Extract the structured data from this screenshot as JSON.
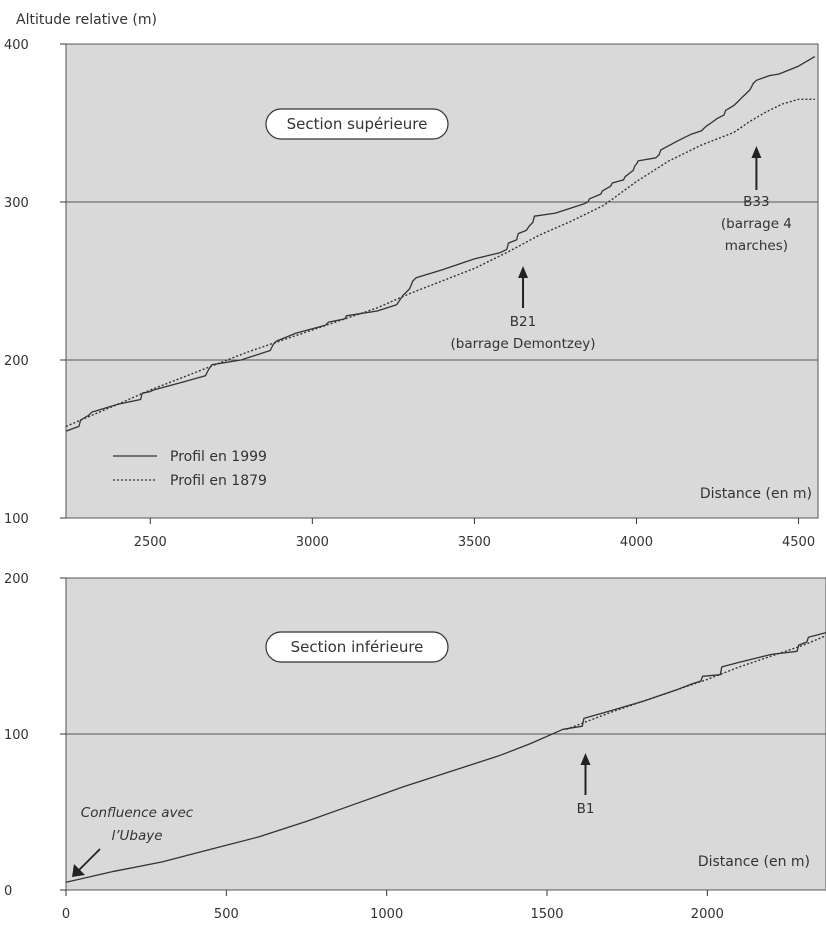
{
  "figure": {
    "y_axis_title": "Altitude relative (m)"
  },
  "chart_data": [
    {
      "type": "line",
      "panel": "top",
      "section_label": "Section supérieure",
      "xlabel": "Distance (en m)",
      "xlim": [
        2240,
        4560
      ],
      "ylim": [
        100,
        400
      ],
      "x_ticks": [
        2500,
        3000,
        3500,
        4000,
        4500
      ],
      "y_ticks": [
        100,
        200,
        300,
        400
      ],
      "gridlines_y": [
        200,
        300
      ],
      "legend": {
        "position": "bottom-left"
      },
      "series": [
        {
          "name": "Profil en 1999",
          "style": "solid",
          "x": [
            2240,
            2280,
            2285,
            2310,
            2320,
            2400,
            2470,
            2475,
            2500,
            2510,
            2600,
            2670,
            2680,
            2690,
            2780,
            2870,
            2880,
            2890,
            2950,
            3040,
            3050,
            3100,
            3105,
            3200,
            3260,
            3280,
            3290,
            3300,
            3310,
            3320,
            3400,
            3500,
            3580,
            3600,
            3605,
            3630,
            3635,
            3660,
            3670,
            3680,
            3685,
            3750,
            3840,
            3850,
            3855,
            3890,
            3895,
            3920,
            3925,
            3960,
            3965,
            3990,
            3995,
            4000,
            4005,
            4060,
            4070,
            4075,
            4130,
            4140,
            4150,
            4170,
            4200,
            4215,
            4230,
            4250,
            4270,
            4275,
            4300,
            4310,
            4320,
            4330,
            4340,
            4350,
            4355,
            4360,
            4370,
            4410,
            4440,
            4500,
            4550
          ],
          "y": [
            155,
            158,
            162,
            165,
            167,
            172,
            175,
            179,
            180,
            181,
            186,
            190,
            194,
            197,
            200,
            206,
            210,
            212,
            217,
            222,
            224,
            226,
            228,
            231,
            235,
            241,
            243,
            245,
            250,
            252,
            257,
            264,
            268,
            270,
            274,
            276,
            280,
            282,
            285,
            287,
            291,
            293,
            299,
            300,
            302,
            305,
            307,
            310,
            312,
            314,
            316,
            320,
            323,
            324,
            326,
            328,
            330,
            333,
            339,
            340,
            341,
            343,
            345,
            348,
            350,
            353,
            355,
            358,
            361,
            363,
            365,
            367,
            369,
            371,
            373,
            375,
            377,
            380,
            381,
            386,
            392
          ]
        },
        {
          "name": "Profil en 1879",
          "style": "dotted",
          "x": [
            2240,
            2400,
            2500,
            2600,
            2700,
            2800,
            2900,
            3000,
            3100,
            3200,
            3300,
            3400,
            3500,
            3600,
            3700,
            3800,
            3900,
            4000,
            4100,
            4200,
            4300,
            4350,
            4400,
            4450,
            4500,
            4550
          ],
          "y": [
            158,
            172,
            181,
            189,
            197,
            205,
            212,
            219,
            226,
            233,
            242,
            250,
            258,
            268,
            279,
            288,
            298,
            313,
            326,
            336,
            344,
            351,
            357,
            362,
            365,
            365
          ]
        }
      ],
      "annotations": [
        {
          "label": "B21",
          "sublabel": "(barrage Demontzey)",
          "x": 3650
        },
        {
          "label": "B33",
          "sublabel": "(barrage 4",
          "sublabel2": "marches)",
          "x": 4370
        }
      ]
    },
    {
      "type": "line",
      "panel": "bottom",
      "section_label": "Section inférieure",
      "xlabel": "Distance (en m)",
      "xlim": [
        0,
        2370
      ],
      "ylim": [
        0,
        200
      ],
      "x_ticks": [
        0,
        500,
        1000,
        1500,
        2000
      ],
      "y_ticks": [
        0,
        100,
        200
      ],
      "gridlines_y": [
        100
      ],
      "series": [
        {
          "name": "Profil en 1999",
          "style": "solid",
          "x": [
            0,
            150,
            300,
            450,
            600,
            750,
            900,
            1050,
            1200,
            1350,
            1450,
            1550,
            1610,
            1615,
            1700,
            1800,
            1900,
            1950,
            1980,
            1985,
            2040,
            2045,
            2100,
            2200,
            2280,
            2285,
            2310,
            2315,
            2370
          ],
          "y": [
            5,
            12,
            18,
            26,
            34,
            44,
            55,
            66,
            76,
            86,
            94,
            103,
            105,
            110,
            115,
            121,
            128,
            132,
            134,
            137,
            138,
            143,
            146,
            151,
            153,
            157,
            159,
            162,
            165
          ]
        },
        {
          "name": "Profil en 1879",
          "style": "dotted",
          "x": [
            1560,
            1700,
            1800,
            1900,
            2000,
            2100,
            2200,
            2300,
            2370
          ],
          "y": [
            103,
            114,
            121,
            128,
            135,
            143,
            150,
            157,
            163
          ]
        }
      ],
      "annotations": [
        {
          "label": "B1",
          "x": 1620
        },
        {
          "label": "Confluence avec",
          "sublabel": "l’Ubaye",
          "x": 30,
          "italic": true
        }
      ]
    }
  ]
}
